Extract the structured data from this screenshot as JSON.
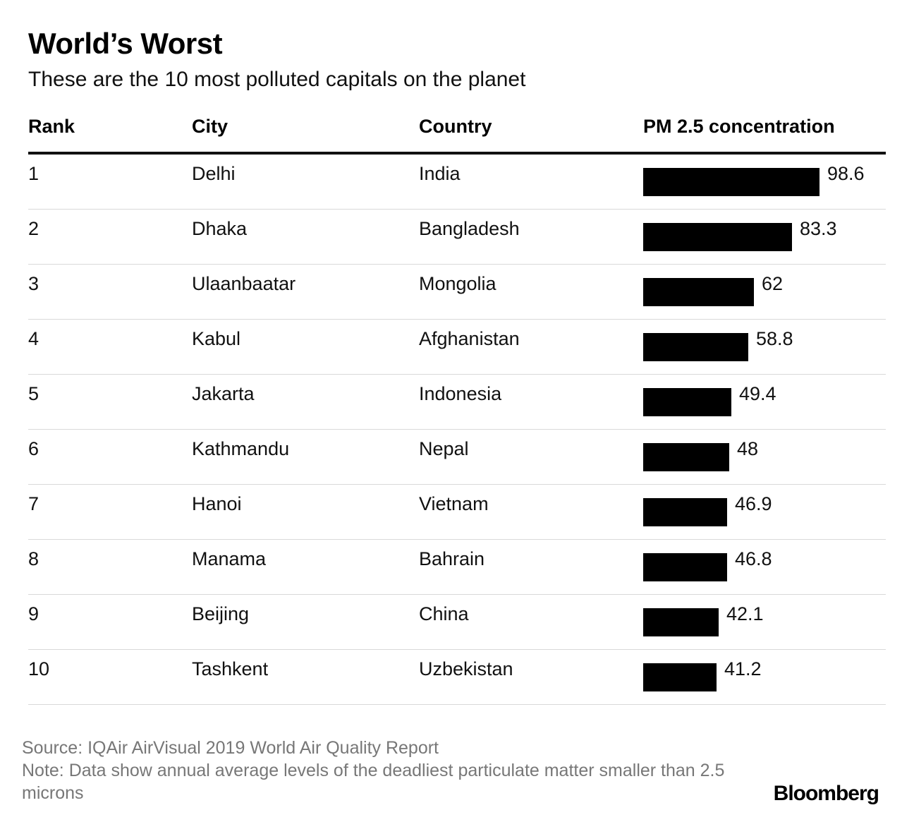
{
  "header": {
    "title": "World’s Worst",
    "subtitle": "These are the 10 most polluted capitals on the planet"
  },
  "table": {
    "columns": [
      "Rank",
      "City",
      "Country",
      "PM 2.5 concentration"
    ]
  },
  "chart_data": {
    "type": "bar",
    "orientation": "horizontal",
    "title": "World’s Worst",
    "subtitle": "These are the 10 most polluted capitals on the planet",
    "columns": [
      "Rank",
      "City",
      "Country",
      "PM 2.5 concentration"
    ],
    "rows": [
      {
        "rank": "1",
        "city": "Delhi",
        "country": "India",
        "value": 98.6,
        "label": "98.6"
      },
      {
        "rank": "2",
        "city": "Dhaka",
        "country": "Bangladesh",
        "value": 83.3,
        "label": "83.3"
      },
      {
        "rank": "3",
        "city": "Ulaanbaatar",
        "country": "Mongolia",
        "value": 62,
        "label": "62"
      },
      {
        "rank": "4",
        "city": "Kabul",
        "country": "Afghanistan",
        "value": 58.8,
        "label": "58.8"
      },
      {
        "rank": "5",
        "city": "Jakarta",
        "country": "Indonesia",
        "value": 49.4,
        "label": "49.4"
      },
      {
        "rank": "6",
        "city": "Kathmandu",
        "country": "Nepal",
        "value": 48,
        "label": "48"
      },
      {
        "rank": "7",
        "city": "Hanoi",
        "country": "Vietnam",
        "value": 46.9,
        "label": "46.9"
      },
      {
        "rank": "8",
        "city": "Manama",
        "country": "Bahrain",
        "value": 46.8,
        "label": "46.8"
      },
      {
        "rank": "9",
        "city": "Beijing",
        "country": "China",
        "value": 42.1,
        "label": "42.1"
      },
      {
        "rank": "10",
        "city": "Tashkent",
        "country": "Uzbekistan",
        "value": 41.2,
        "label": "41.2"
      }
    ],
    "xlim": [
      0,
      98.6
    ],
    "bar_color": "#000000",
    "grid": false
  },
  "footer": {
    "source": "Source: IQAir AirVisual 2019 World Air Quality Report",
    "note": "Note: Data show annual average levels of the deadliest particulate matter smaller than 2.5 microns",
    "brand": "Bloomberg"
  }
}
